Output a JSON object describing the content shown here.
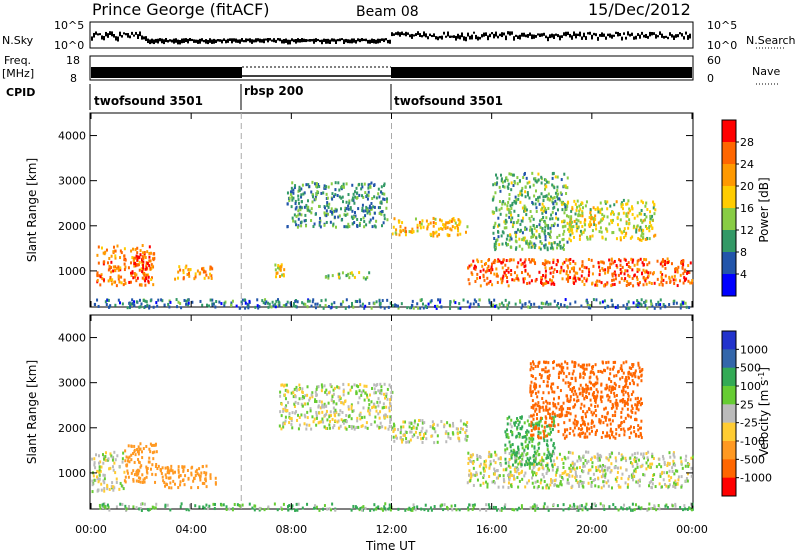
{
  "header": {
    "title": "Prince George (fitACF)",
    "beam": "Beam 08",
    "date": "15/Dec/2012"
  },
  "panels": {
    "noise": {
      "left_label": "N.Sky",
      "left_ticks": [
        "10^5",
        "10^0"
      ],
      "right_ticks": [
        "10^5",
        "10^0"
      ],
      "right_label": "N.Search"
    },
    "freq": {
      "left_label_1": "Freq.",
      "left_label_2": "[MHz]",
      "left_ticks": [
        "18",
        "8"
      ],
      "right_ticks": [
        "60",
        "0"
      ],
      "right_label": "Nave"
    },
    "cpid": {
      "label": "CPID",
      "segments": [
        "twofsound 3501",
        "rbsp 200",
        "twofsound 3501"
      ]
    }
  },
  "colorbars": {
    "power": {
      "label": "Power [dB]",
      "ticks": [
        "28",
        "24",
        "20",
        "16",
        "12",
        "8",
        "4"
      ],
      "colors": [
        "#ff0000",
        "#ff6600",
        "#ff9900",
        "#ffcc00",
        "#88cc44",
        "#339966",
        "#2255aa",
        "#0000ff"
      ]
    },
    "velocity": {
      "label": "Velocity [m s",
      "label_sup": "-1",
      "label_end": "]",
      "ticks": [
        "1000",
        "500",
        "100",
        "25",
        "-25",
        "-100",
        "-500",
        "-1000"
      ],
      "colors": [
        "#2233cc",
        "#3366aa",
        "#33aa55",
        "#66cc33",
        "#bbbbbb",
        "#ffcc33",
        "#ff9922",
        "#ff6600",
        "#ff0000"
      ]
    }
  },
  "chart_data": [
    {
      "type": "heatmap",
      "title": "Power",
      "ylabel": "Slant Range [km]",
      "xlabel": "Time UT",
      "xticks": [
        "00:00",
        "04:00",
        "08:00",
        "12:00",
        "16:00",
        "20:00",
        "00:00"
      ],
      "yticks": [
        "1000",
        "2000",
        "3000",
        "4000"
      ],
      "ylim": [
        200,
        4500
      ],
      "xlim_hours": [
        0,
        24
      ],
      "mode_change_lines_hours": [
        6,
        12
      ],
      "echo_regions": [
        {
          "t0": 0.2,
          "t1": 2.5,
          "r0": 700,
          "r1": 1600,
          "power": 22
        },
        {
          "t0": 1.6,
          "t1": 2.3,
          "r0": 800,
          "r1": 1400,
          "power": 28
        },
        {
          "t0": 3.3,
          "t1": 4.9,
          "r0": 850,
          "r1": 1150,
          "power": 20
        },
        {
          "t0": 7.3,
          "t1": 7.7,
          "r0": 900,
          "r1": 1200,
          "power": 18
        },
        {
          "t0": 7.8,
          "t1": 11.8,
          "r0": 2000,
          "r1": 3000,
          "power": 8
        },
        {
          "t0": 9.3,
          "t1": 11.2,
          "r0": 850,
          "r1": 1000,
          "power": 12
        },
        {
          "t0": 12.0,
          "t1": 15.0,
          "r0": 1800,
          "r1": 2200,
          "power": 18
        },
        {
          "t0": 15.0,
          "t1": 24.0,
          "r0": 700,
          "r1": 1300,
          "power": 24
        },
        {
          "t0": 16.0,
          "t1": 19.0,
          "r0": 1500,
          "r1": 3200,
          "power": 10
        },
        {
          "t0": 19.0,
          "t1": 22.5,
          "r0": 1700,
          "r1": 2600,
          "power": 14
        },
        {
          "t0": 0.0,
          "t1": 24.0,
          "r0": 200,
          "r1": 400,
          "power": 6
        }
      ]
    },
    {
      "type": "heatmap",
      "title": "Velocity",
      "ylabel": "Slant Range [km]",
      "xlabel": "Time UT",
      "xticks": [
        "00:00",
        "04:00",
        "08:00",
        "12:00",
        "16:00",
        "20:00",
        "00:00"
      ],
      "yticks": [
        "1000",
        "2000",
        "3000",
        "4000"
      ],
      "ylim": [
        200,
        4500
      ],
      "xlim_hours": [
        0,
        24
      ],
      "mode_change_lines_hours": [
        6,
        12
      ],
      "echo_regions": [
        {
          "t0": 0.0,
          "t1": 1.3,
          "r0": 600,
          "r1": 1500,
          "velocity": 0
        },
        {
          "t0": 1.3,
          "t1": 2.6,
          "r0": 800,
          "r1": 1700,
          "velocity": -200
        },
        {
          "t0": 2.6,
          "t1": 5.0,
          "r0": 700,
          "r1": 1200,
          "velocity": -150
        },
        {
          "t0": 7.5,
          "t1": 12.0,
          "r0": 2000,
          "r1": 3000,
          "velocity": 0
        },
        {
          "t0": 12.0,
          "t1": 15.0,
          "r0": 1700,
          "r1": 2200,
          "velocity": 0
        },
        {
          "t0": 15.0,
          "t1": 24.0,
          "r0": 700,
          "r1": 1500,
          "velocity": 0
        },
        {
          "t0": 16.5,
          "t1": 18.5,
          "r0": 1200,
          "r1": 2300,
          "velocity": 80
        },
        {
          "t0": 17.5,
          "t1": 22.0,
          "r0": 1800,
          "r1": 3500,
          "velocity": -400
        },
        {
          "t0": 0.0,
          "t1": 24.0,
          "r0": 200,
          "r1": 350,
          "velocity": 60
        }
      ]
    }
  ]
}
